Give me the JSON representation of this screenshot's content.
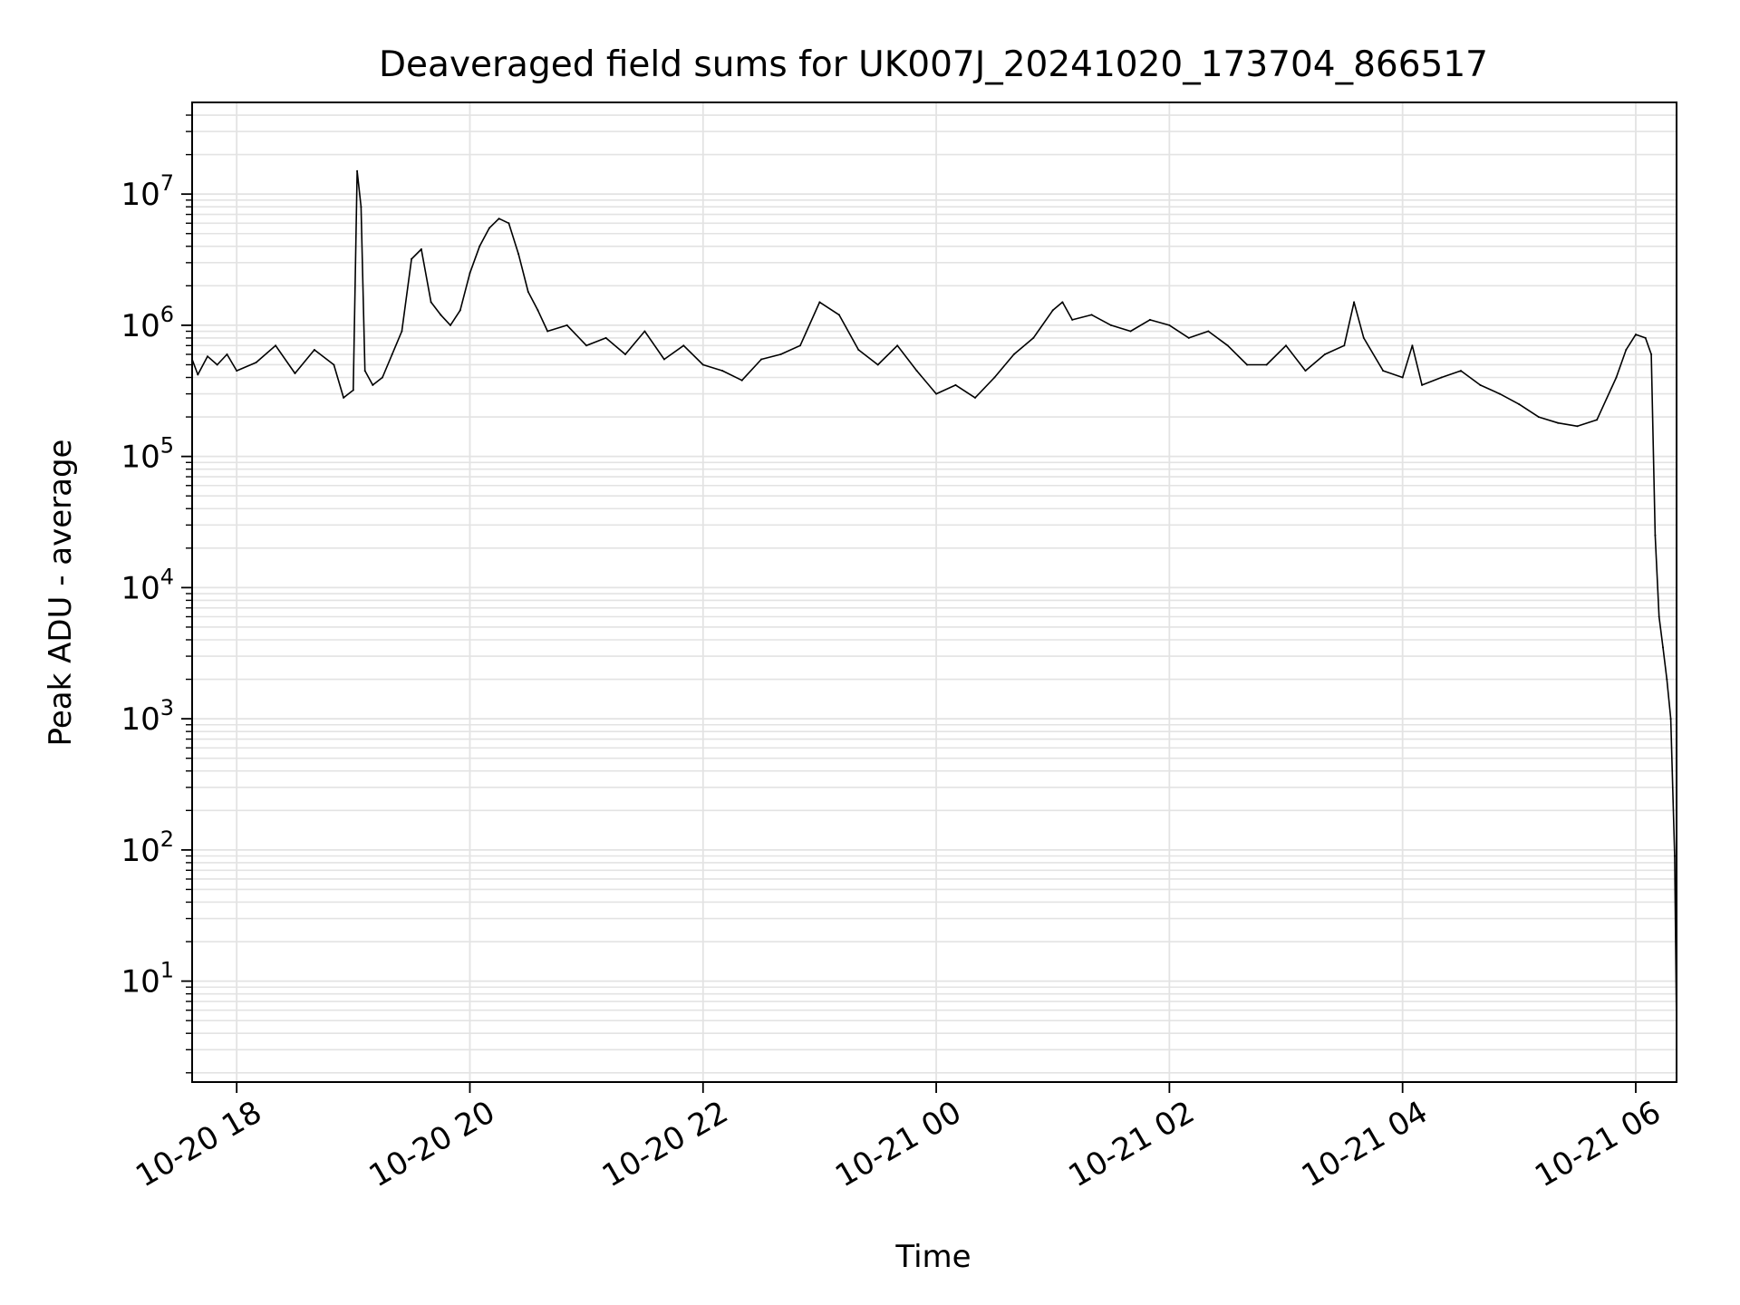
{
  "chart_data": {
    "type": "line",
    "title": "Deaveraged field sums for UK007J_20241020_173704_866517",
    "xlabel": "Time",
    "ylabel": "Peak ADU - average",
    "x_type": "datetime",
    "xlim": [
      "2024-10-20 17:37:04",
      "2024-10-21 06:21:00"
    ],
    "yscale": "log",
    "ylim": [
      1.7,
      50000000
    ],
    "grid": true,
    "line_color": "#000000",
    "grid_color": "#e3e3e3",
    "x_ticks": [
      {
        "value": "2024-10-20 18:00",
        "label": "10-20 18"
      },
      {
        "value": "2024-10-20 20:00",
        "label": "10-20 20"
      },
      {
        "value": "2024-10-20 22:00",
        "label": "10-20 22"
      },
      {
        "value": "2024-10-21 00:00",
        "label": "10-21 00"
      },
      {
        "value": "2024-10-21 02:00",
        "label": "10-21 02"
      },
      {
        "value": "2024-10-21 04:00",
        "label": "10-21 04"
      },
      {
        "value": "2024-10-21 06:00",
        "label": "10-21 06"
      }
    ],
    "y_ticks": [
      {
        "value": 10,
        "base": "10",
        "exp": "1"
      },
      {
        "value": 100,
        "base": "10",
        "exp": "2"
      },
      {
        "value": 1000,
        "base": "10",
        "exp": "3"
      },
      {
        "value": 10000,
        "base": "10",
        "exp": "4"
      },
      {
        "value": 100000,
        "base": "10",
        "exp": "5"
      },
      {
        "value": 1000000,
        "base": "10",
        "exp": "6"
      },
      {
        "value": 10000000,
        "base": "10",
        "exp": "7"
      }
    ],
    "series": [
      {
        "x": [
          "2024-10-20 17:37:04",
          "2024-10-20 17:40",
          "2024-10-20 17:45",
          "2024-10-20 17:50",
          "2024-10-20 17:55",
          "2024-10-20 18:00",
          "2024-10-20 18:10",
          "2024-10-20 18:20",
          "2024-10-20 18:30",
          "2024-10-20 18:40",
          "2024-10-20 18:50",
          "2024-10-20 18:55",
          "2024-10-20 19:00",
          "2024-10-20 19:02",
          "2024-10-20 19:04",
          "2024-10-20 19:06",
          "2024-10-20 19:10",
          "2024-10-20 19:15",
          "2024-10-20 19:20",
          "2024-10-20 19:25",
          "2024-10-20 19:30",
          "2024-10-20 19:35",
          "2024-10-20 19:40",
          "2024-10-20 19:45",
          "2024-10-20 19:50",
          "2024-10-20 19:55",
          "2024-10-20 20:00",
          "2024-10-20 20:05",
          "2024-10-20 20:10",
          "2024-10-20 20:15",
          "2024-10-20 20:20",
          "2024-10-20 20:25",
          "2024-10-20 20:30",
          "2024-10-20 20:35",
          "2024-10-20 20:40",
          "2024-10-20 20:50",
          "2024-10-20 21:00",
          "2024-10-20 21:10",
          "2024-10-20 21:20",
          "2024-10-20 21:30",
          "2024-10-20 21:40",
          "2024-10-20 21:50",
          "2024-10-20 22:00",
          "2024-10-20 22:10",
          "2024-10-20 22:20",
          "2024-10-20 22:30",
          "2024-10-20 22:40",
          "2024-10-20 22:50",
          "2024-10-20 23:00",
          "2024-10-20 23:10",
          "2024-10-20 23:20",
          "2024-10-20 23:30",
          "2024-10-20 23:40",
          "2024-10-20 23:50",
          "2024-10-21 00:00",
          "2024-10-21 00:10",
          "2024-10-21 00:20",
          "2024-10-21 00:30",
          "2024-10-21 00:40",
          "2024-10-21 00:50",
          "2024-10-21 01:00",
          "2024-10-21 01:05",
          "2024-10-21 01:10",
          "2024-10-21 01:20",
          "2024-10-21 01:30",
          "2024-10-21 01:40",
          "2024-10-21 01:50",
          "2024-10-21 02:00",
          "2024-10-21 02:10",
          "2024-10-21 02:20",
          "2024-10-21 02:30",
          "2024-10-21 02:40",
          "2024-10-21 02:50",
          "2024-10-21 03:00",
          "2024-10-21 03:10",
          "2024-10-21 03:20",
          "2024-10-21 03:30",
          "2024-10-21 03:35",
          "2024-10-21 03:40",
          "2024-10-21 03:50",
          "2024-10-21 04:00",
          "2024-10-21 04:05",
          "2024-10-21 04:10",
          "2024-10-21 04:20",
          "2024-10-21 04:30",
          "2024-10-21 04:40",
          "2024-10-21 04:50",
          "2024-10-21 05:00",
          "2024-10-21 05:10",
          "2024-10-21 05:20",
          "2024-10-21 05:30",
          "2024-10-21 05:40",
          "2024-10-21 05:50",
          "2024-10-21 05:55",
          "2024-10-21 06:00",
          "2024-10-21 06:05",
          "2024-10-21 06:08",
          "2024-10-21 06:10",
          "2024-10-21 06:12",
          "2024-10-21 06:14",
          "2024-10-21 06:16",
          "2024-10-21 06:18",
          "2024-10-21 06:20",
          "2024-10-21 06:21"
        ],
        "y": [
          550000,
          420000,
          580000,
          500000,
          600000,
          450000,
          520000,
          700000,
          430000,
          650000,
          500000,
          280000,
          320000,
          15000000,
          8000000,
          450000,
          350000,
          400000,
          600000,
          900000,
          3200000,
          3800000,
          1500000,
          1200000,
          1000000,
          1300000,
          2500000,
          4000000,
          5500000,
          6500000,
          6000000,
          3500000,
          1800000,
          1300000,
          900000,
          1000000,
          700000,
          800000,
          600000,
          900000,
          550000,
          700000,
          500000,
          450000,
          380000,
          550000,
          600000,
          700000,
          1500000,
          1200000,
          650000,
          500000,
          700000,
          450000,
          300000,
          350000,
          280000,
          400000,
          600000,
          800000,
          1300000,
          1500000,
          1100000,
          1200000,
          1000000,
          900000,
          1100000,
          1000000,
          800000,
          900000,
          700000,
          500000,
          500000,
          700000,
          450000,
          600000,
          700000,
          1500000,
          800000,
          450000,
          400000,
          700000,
          350000,
          400000,
          450000,
          350000,
          300000,
          250000,
          200000,
          180000,
          170000,
          190000,
          400000,
          650000,
          850000,
          800000,
          600000,
          25000,
          6000,
          3500,
          2000,
          1000,
          90,
          4.5
        ],
        "color": "#000000"
      }
    ]
  }
}
